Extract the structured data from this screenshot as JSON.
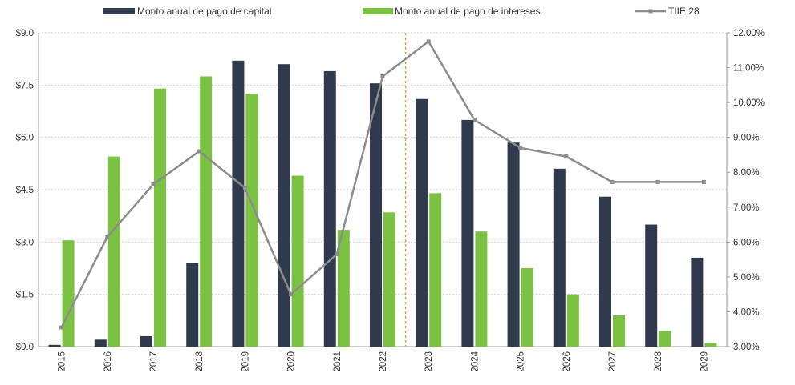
{
  "chart_data": {
    "type": "bar",
    "categories": [
      "2015",
      "2016",
      "2017",
      "2018",
      "2019",
      "2020",
      "2021",
      "2022",
      "2023",
      "2024",
      "2025",
      "2026",
      "2027",
      "2028",
      "2029"
    ],
    "series": [
      {
        "name": "Monto anual de pago de capital",
        "kind": "bar",
        "axis": "left",
        "color": "#2f3b4c",
        "values": [
          0.05,
          0.2,
          0.3,
          2.4,
          8.2,
          8.1,
          7.9,
          7.55,
          7.1,
          6.5,
          5.85,
          5.1,
          4.3,
          3.5,
          2.55
        ]
      },
      {
        "name": "Monto anual de pago de intereses",
        "kind": "bar",
        "axis": "left",
        "color": "#7cc242",
        "values": [
          3.05,
          5.45,
          7.4,
          7.75,
          7.25,
          4.9,
          3.35,
          3.85,
          4.4,
          3.3,
          2.25,
          1.5,
          0.9,
          0.45,
          0.1
        ]
      },
      {
        "name": "TIIE 28",
        "kind": "line",
        "axis": "right",
        "color": "#8c8c8c",
        "values": [
          3.55,
          6.15,
          7.65,
          8.6,
          7.55,
          4.5,
          5.65,
          10.75,
          11.75,
          9.5,
          8.7,
          8.45,
          7.72,
          7.72,
          7.72
        ]
      }
    ],
    "y_left": {
      "min": 0,
      "max": 9,
      "ticks": [
        0,
        1.5,
        3,
        4.5,
        6,
        7.5,
        9
      ],
      "tick_labels": [
        "$0.0",
        "$1.5",
        "$3.0",
        "$4.5",
        "$6.0",
        "$7.5",
        "$9.0"
      ]
    },
    "y_right": {
      "min": 3,
      "max": 12,
      "ticks": [
        3,
        4,
        5,
        6,
        7,
        8,
        9,
        10,
        11,
        12
      ],
      "tick_labels": [
        "3.00%",
        "4.00%",
        "5.00%",
        "6.00%",
        "7.00%",
        "8.00%",
        "9.00%",
        "10.00%",
        "11.00%",
        "12.00%"
      ]
    },
    "reference_line": {
      "between": [
        "2022",
        "2023"
      ],
      "color": "#f0a030",
      "style": "dotted"
    },
    "grid": true,
    "legend_position": "top"
  }
}
